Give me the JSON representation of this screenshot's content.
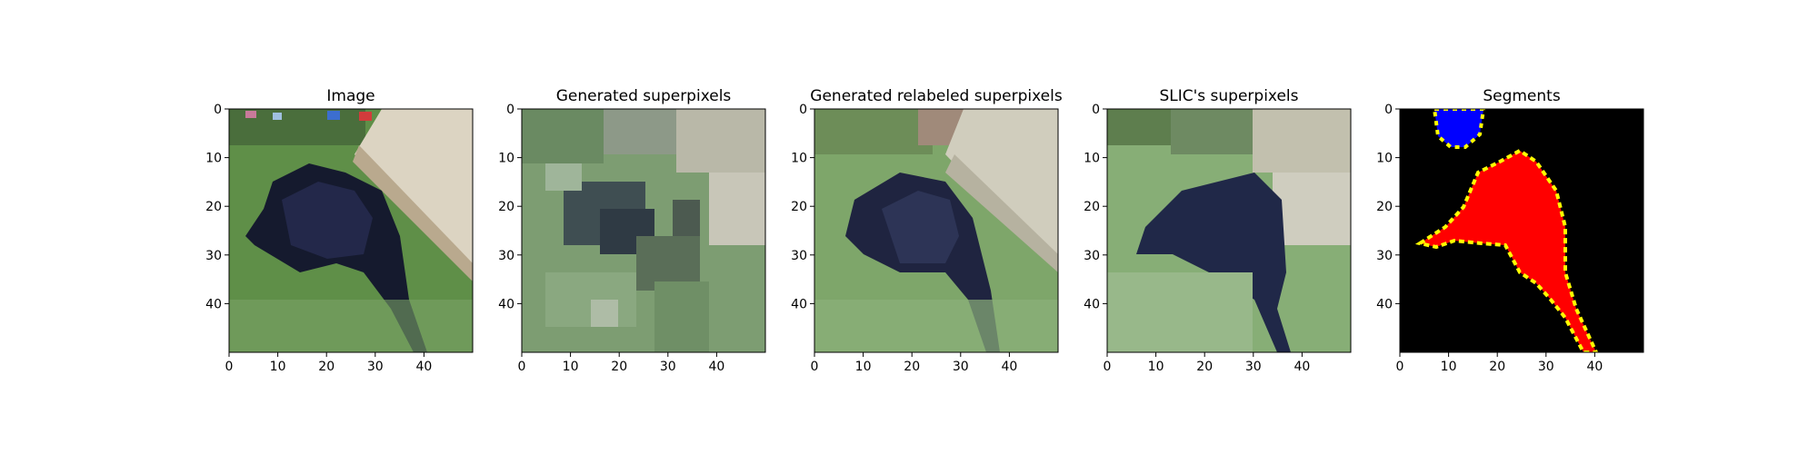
{
  "figure": {
    "panels": [
      {
        "id": "image",
        "title": "Image",
        "kind": "photo",
        "icon": "dog-photo-icon"
      },
      {
        "id": "generated",
        "title": "Generated superpixels",
        "kind": "superpixel-noisy",
        "icon": "superpixel-grid-icon"
      },
      {
        "id": "relabeled",
        "title": "Generated relabeled superpixels",
        "kind": "superpixel-relabeled",
        "icon": "superpixel-grid-icon"
      },
      {
        "id": "slic",
        "title": "SLIC's superpixels",
        "kind": "superpixel-slic",
        "icon": "superpixel-grid-icon"
      },
      {
        "id": "segments",
        "title": "Segments",
        "kind": "segments",
        "icon": "segment-mask-icon"
      }
    ],
    "x_ticks": [
      "0",
      "10",
      "20",
      "30",
      "40"
    ],
    "y_ticks": [
      "0",
      "10",
      "20",
      "30",
      "40"
    ],
    "axis_range": [
      0,
      50
    ]
  },
  "colors": {
    "grass": "#6a9a50",
    "dog": "#1c2038",
    "wood": "#d8d2c4",
    "segment_background": "#000000",
    "segment_dog": "#ff0000",
    "segment_small": "#0000ff",
    "segment_border": "#ffff00"
  }
}
